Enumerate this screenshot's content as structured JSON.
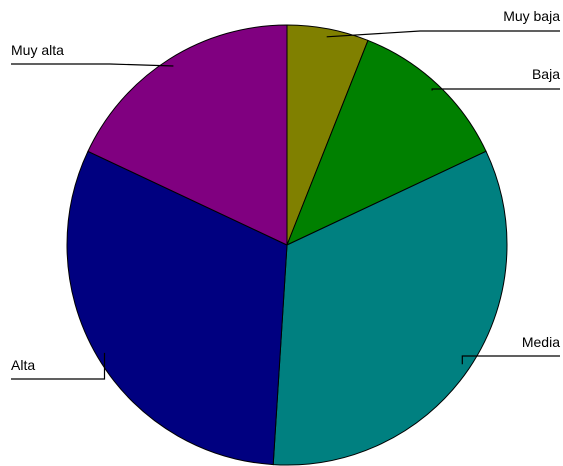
{
  "chart_data": {
    "type": "pie",
    "title": "",
    "categories": [
      "Muy baja",
      "Baja",
      "Media",
      "Alta",
      "Muy alta"
    ],
    "values": [
      6,
      12,
      33,
      31,
      18
    ],
    "colors": [
      "#808000",
      "#008000",
      "#008080",
      "#000080",
      "#800080"
    ],
    "start_angle_deg": 0,
    "direction": "clockwise",
    "legend": "none"
  }
}
